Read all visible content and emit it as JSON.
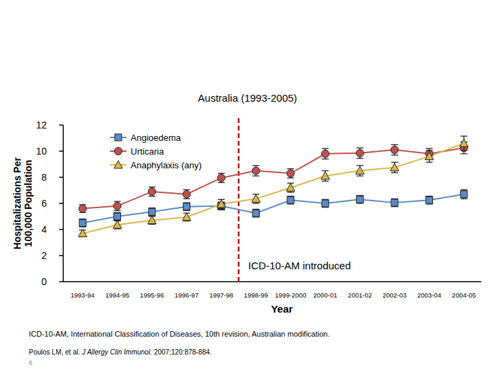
{
  "chart_data": {
    "type": "line",
    "title": "Australia (1993-2005)",
    "xlabel": "Year",
    "ylabel": [
      "Hospitalizations Per",
      "100,000 Population"
    ],
    "categories": [
      "1993-94",
      "1994-95",
      "1995-96",
      "1996-97",
      "1997-98",
      "1998-99",
      "1999-2000",
      "2000-01",
      "2001-02",
      "2002-03",
      "2003-04",
      "2004-05"
    ],
    "series": [
      {
        "name": "Angioedema",
        "color": "#5b8bc9",
        "marker": "square",
        "values": [
          4.5,
          5.0,
          5.35,
          5.75,
          5.8,
          5.25,
          6.25,
          6.0,
          6.3,
          6.05,
          6.25,
          6.7
        ],
        "errors": [
          0.3,
          0.3,
          0.3,
          0.3,
          0.3,
          0.3,
          0.3,
          0.3,
          0.3,
          0.3,
          0.3,
          0.35
        ]
      },
      {
        "name": "Urticaria",
        "color": "#c0504d",
        "marker": "circle",
        "values": [
          5.6,
          5.8,
          6.9,
          6.7,
          7.95,
          8.5,
          8.3,
          9.8,
          9.85,
          10.1,
          9.8,
          10.25
        ],
        "errors": [
          0.3,
          0.35,
          0.35,
          0.35,
          0.35,
          0.4,
          0.35,
          0.4,
          0.4,
          0.4,
          0.4,
          0.45
        ]
      },
      {
        "name": "Anaphylaxis (any)",
        "color": "#d8b64a",
        "marker": "triangle",
        "values": [
          3.7,
          4.35,
          4.7,
          4.95,
          5.95,
          6.35,
          7.2,
          8.1,
          8.5,
          8.75,
          9.6,
          10.6
        ],
        "errors": [
          0.25,
          0.3,
          0.3,
          0.3,
          0.35,
          0.35,
          0.35,
          0.4,
          0.4,
          0.4,
          0.45,
          0.55
        ]
      }
    ],
    "ylim": [
      0,
      12
    ],
    "yticks": [
      0,
      2,
      4,
      6,
      8,
      10,
      12
    ],
    "grid": false,
    "legend": "upper left",
    "annotations": [
      {
        "text": "ICD-10-AM introduced",
        "between": [
          "1997-98",
          "1998-99"
        ]
      }
    ],
    "footnote": "ICD-10-AM, International Classification of Diseases, 10th revision, Australian modification.",
    "source": {
      "authors": "Poulos LM, et al. ",
      "journal": "J Allergy Clin Immunol.",
      "citation": " 2007;120:878-884."
    },
    "page_number": 6
  }
}
